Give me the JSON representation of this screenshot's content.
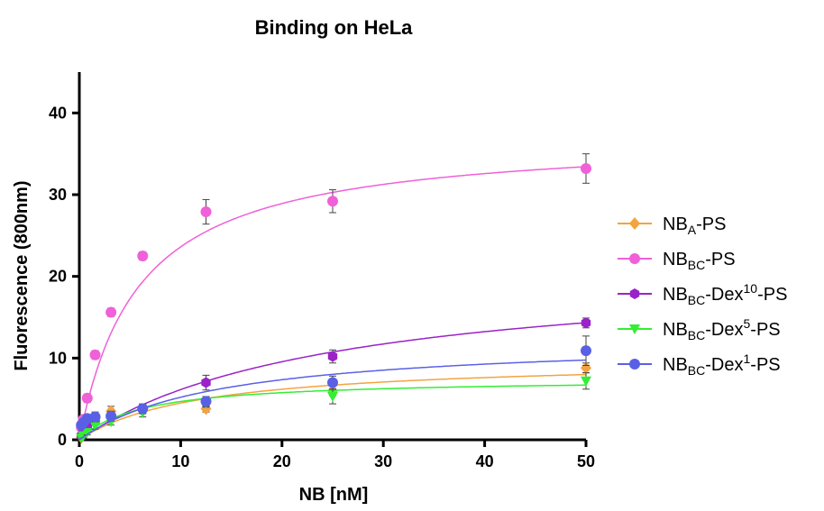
{
  "chart_data": {
    "type": "scatter",
    "title": "Binding on HeLa",
    "xlabel": "NB [nM]",
    "ylabel": "Fluorescence (800nm)",
    "xlim": [
      0,
      50
    ],
    "ylim": [
      0,
      45
    ],
    "xticks": [
      0,
      10,
      20,
      30,
      40,
      50
    ],
    "yticks": [
      0,
      10,
      20,
      30,
      40
    ],
    "x_tick_labels": [
      "0",
      "10",
      "20",
      "30",
      "40",
      "50"
    ],
    "y_tick_labels": [
      "0",
      "10",
      "20",
      "30",
      "40"
    ],
    "grid": false,
    "legend_position": "right",
    "series": [
      {
        "name": "NB_A-PS",
        "legend": {
          "base": "NB",
          "sub": "A",
          "rest": "-PS"
        },
        "color": "#f4a340",
        "marker": "diamond",
        "x": [
          0.2,
          0.39,
          0.78,
          1.56,
          3.125,
          6.25,
          12.5,
          25,
          50
        ],
        "y": [
          0.3,
          0.8,
          1.3,
          2.3,
          3.5,
          3.6,
          3.8,
          6.0,
          8.8
        ],
        "err": [
          0.2,
          0.3,
          0.4,
          0.5,
          0.6,
          0.4,
          0.4,
          0.6,
          0.6
        ],
        "fit": {
          "bmax": 9.9,
          "kd": 12
        }
      },
      {
        "name": "NB_BC-PS",
        "legend": {
          "base": "NB",
          "sub": "BC",
          "rest": "-PS"
        },
        "color": "#f060d8",
        "marker": "circle",
        "x": [
          0.2,
          0.39,
          0.78,
          1.56,
          3.125,
          6.25,
          12.5,
          25,
          50
        ],
        "y": [
          1.5,
          2.5,
          5.1,
          10.4,
          15.6,
          22.5,
          27.9,
          29.2,
          33.2
        ],
        "err": [
          0.4,
          0.4,
          0.5,
          0.5,
          0.5,
          0.5,
          1.5,
          1.4,
          1.8
        ],
        "fit": {
          "bmax": 37.3,
          "kd": 5.8
        }
      },
      {
        "name": "NB_BC-Dex10-PS",
        "legend": {
          "base": "NB",
          "sub": "BC",
          "rest": "-Dex",
          "sup": "10",
          "tail": "-PS"
        },
        "color": "#9a22c8",
        "marker": "hexagon",
        "x": [
          0.2,
          0.39,
          0.78,
          1.56,
          3.125,
          6.25,
          12.5,
          25,
          50
        ],
        "y": [
          0.5,
          0.9,
          1.6,
          2.3,
          2.9,
          3.8,
          7.0,
          10.2,
          14.3
        ],
        "err": [
          0.3,
          0.3,
          0.4,
          0.5,
          0.5,
          0.5,
          0.9,
          0.8,
          0.6
        ],
        "fit": {
          "bmax": 21.5,
          "kd": 25
        }
      },
      {
        "name": "NB_BC-Dex5-PS",
        "legend": {
          "base": "NB",
          "sub": "BC",
          "rest": "-Dex",
          "sup": "5",
          "tail": "-PS"
        },
        "color": "#33ee33",
        "marker": "triangle-down",
        "x": [
          0.2,
          0.39,
          0.78,
          1.56,
          3.125,
          6.25,
          12.5,
          25,
          50
        ],
        "y": [
          0.2,
          0.5,
          0.9,
          1.7,
          2.2,
          3.3,
          4.5,
          5.3,
          7.2
        ],
        "err": [
          0.2,
          0.3,
          0.3,
          0.4,
          0.4,
          0.5,
          0.5,
          0.9,
          1.0
        ],
        "fit": {
          "bmax": 7.5,
          "kd": 6
        }
      },
      {
        "name": "NB_BC-Dex1-PS",
        "legend": {
          "base": "NB",
          "sub": "BC",
          "rest": "-Dex",
          "sup": "1",
          "tail": "-PS"
        },
        "color": "#5a60e6",
        "marker": "circle",
        "x": [
          0.2,
          0.39,
          0.78,
          1.56,
          3.125,
          6.25,
          12.5,
          25,
          50
        ],
        "y": [
          1.8,
          2.1,
          2.6,
          2.8,
          2.9,
          3.8,
          4.7,
          7.0,
          10.9
        ],
        "err": [
          0.4,
          0.4,
          0.5,
          0.6,
          0.6,
          0.6,
          0.6,
          0.8,
          1.8
        ],
        "fit": {
          "bmax": 12.5,
          "kd": 14
        }
      }
    ]
  }
}
